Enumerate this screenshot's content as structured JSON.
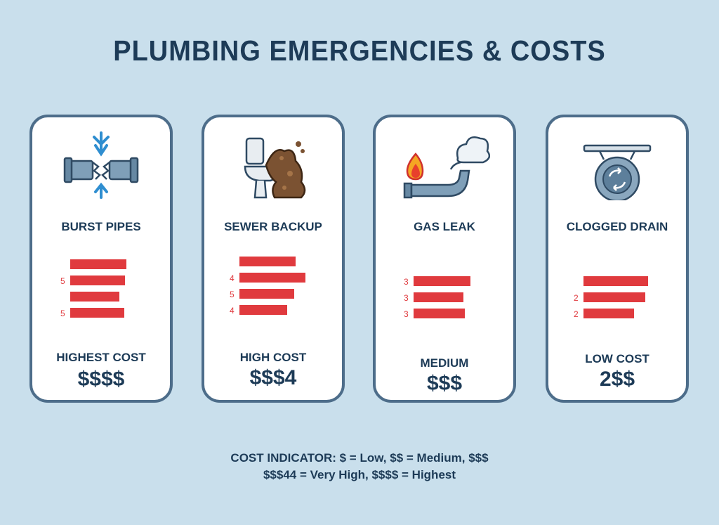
{
  "title": "PLUMBING EMERGENCIES & COSTS",
  "colors": {
    "bar": "#e03a3e",
    "text": "#1d3b57",
    "card_border": "#4d6d8a",
    "background": "#c9dfec"
  },
  "chart_data": {
    "type": "bar",
    "title": "PLUMBING EMERGENCIES & COSTS",
    "panels": [
      {
        "name": "BURST PIPES",
        "icon": "burst-pipe-icon",
        "bar_labels": [
          "",
          "5",
          "",
          "5"
        ],
        "bar_lengths": [
          0.95,
          0.93,
          0.83,
          0.92
        ],
        "cost_label": "HIGHEST COST",
        "cost_symbol": "$$$$"
      },
      {
        "name": "SEWER BACKUP",
        "icon": "toilet-sewage-icon",
        "bar_labels": [
          "",
          "4",
          "5",
          "4"
        ],
        "bar_lengths": [
          0.85,
          1.0,
          0.83,
          0.72
        ],
        "cost_label": "HIGH COST",
        "cost_symbol": "$$$4"
      },
      {
        "name": "GAS LEAK",
        "icon": "gas-leak-pipe-icon",
        "bar_labels": [
          "3",
          "3",
          "3"
        ],
        "bar_lengths": [
          0.92,
          0.81,
          0.83
        ],
        "cost_label": "MEDIUM",
        "cost_symbol": "$$$"
      },
      {
        "name": "CLOGGED DRAIN",
        "icon": "clogged-drain-icon",
        "bar_labels": [
          "",
          "2",
          "2"
        ],
        "bar_lengths": [
          1.0,
          0.96,
          0.78
        ],
        "cost_label": "LOW COST",
        "cost_symbol": "2$$"
      }
    ]
  },
  "legend": {
    "line1": "COST INDICATOR:  $ = Low, $$ = Medium, $$$",
    "line2": "$$$44 = Very High, $$$$ = Highest"
  }
}
